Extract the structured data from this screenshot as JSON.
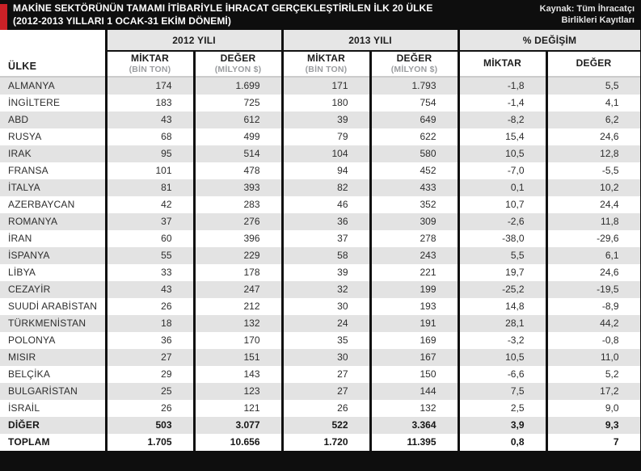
{
  "header": {
    "title_line1": "MAKİNE SEKTÖRÜNÜN TAMAMI İTİBARİYLE İHRACAT GERÇEKLEŞTİRİLEN İLK 20 ÜLKE",
    "title_line2": "(2012-2013 YILLARI 1 OCAK-31 EKİM DÖNEMİ)",
    "source_line1": "Kaynak: Tüm İhracatçı",
    "source_line2": "Birlikleri Kayıtları"
  },
  "table": {
    "country_header": "ÜLKE",
    "groups": [
      {
        "label": "2012 YILI",
        "sub": [
          {
            "label": "MİKTAR",
            "unit": "(BİN TON)"
          },
          {
            "label": "DEĞER",
            "unit": "(MİLYON $)"
          }
        ]
      },
      {
        "label": "2013 YILI",
        "sub": [
          {
            "label": "MİKTAR",
            "unit": "(BİN TON)"
          },
          {
            "label": "DEĞER",
            "unit": "(MİLYON $)"
          }
        ]
      },
      {
        "label": "% DEĞİŞİM",
        "sub": [
          {
            "label": "MİKTAR"
          },
          {
            "label": "DEĞER"
          }
        ]
      }
    ],
    "rows": [
      {
        "country": "ALMANYA",
        "values": [
          "174",
          "1.699",
          "171",
          "1.793",
          "-1,8",
          "5,5"
        ]
      },
      {
        "country": "İNGİLTERE",
        "values": [
          "183",
          "725",
          "180",
          "754",
          "-1,4",
          "4,1"
        ]
      },
      {
        "country": "ABD",
        "values": [
          "43",
          "612",
          "39",
          "649",
          "-8,2",
          "6,2"
        ]
      },
      {
        "country": "RUSYA",
        "values": [
          "68",
          "499",
          "79",
          "622",
          "15,4",
          "24,6"
        ]
      },
      {
        "country": "IRAK",
        "values": [
          "95",
          "514",
          "104",
          "580",
          "10,5",
          "12,8"
        ]
      },
      {
        "country": "FRANSA",
        "values": [
          "101",
          "478",
          "94",
          "452",
          "-7,0",
          "-5,5"
        ]
      },
      {
        "country": "İTALYA",
        "values": [
          "81",
          "393",
          "82",
          "433",
          "0,1",
          "10,2"
        ]
      },
      {
        "country": "AZERBAYCAN",
        "values": [
          "42",
          "283",
          "46",
          "352",
          "10,7",
          "24,4"
        ]
      },
      {
        "country": "ROMANYA",
        "values": [
          "37",
          "276",
          "36",
          "309",
          "-2,6",
          "11,8"
        ]
      },
      {
        "country": "İRAN",
        "values": [
          "60",
          "396",
          "37",
          "278",
          "-38,0",
          "-29,6"
        ]
      },
      {
        "country": "İSPANYA",
        "values": [
          "55",
          "229",
          "58",
          "243",
          "5,5",
          "6,1"
        ]
      },
      {
        "country": "LİBYA",
        "values": [
          "33",
          "178",
          "39",
          "221",
          "19,7",
          "24,6"
        ]
      },
      {
        "country": "CEZAYİR",
        "values": [
          "43",
          "247",
          "32",
          "199",
          "-25,2",
          "-19,5"
        ]
      },
      {
        "country": "SUUDİ ARABİSTAN",
        "values": [
          "26",
          "212",
          "30",
          "193",
          "14,8",
          "-8,9"
        ]
      },
      {
        "country": "TÜRKMENİSTAN",
        "values": [
          "18",
          "132",
          "24",
          "191",
          "28,1",
          "44,2"
        ]
      },
      {
        "country": "POLONYA",
        "values": [
          "36",
          "170",
          "35",
          "169",
          "-3,2",
          "-0,8"
        ]
      },
      {
        "country": "MISIR",
        "values": [
          "27",
          "151",
          "30",
          "167",
          "10,5",
          "11,0"
        ]
      },
      {
        "country": "BELÇİKA",
        "values": [
          "29",
          "143",
          "27",
          "150",
          "-6,6",
          "5,2"
        ]
      },
      {
        "country": "BULGARİSTAN",
        "values": [
          "25",
          "123",
          "27",
          "144",
          "7,5",
          "17,2"
        ]
      },
      {
        "country": "İSRAİL",
        "values": [
          "26",
          "121",
          "26",
          "132",
          "2,5",
          "9,0"
        ]
      },
      {
        "country": "DİĞER",
        "values": [
          "503",
          "3.077",
          "522",
          "3.364",
          "3,9",
          "9,3"
        ],
        "bold": true
      },
      {
        "country": "TOPLAM",
        "values": [
          "1.705",
          "10.656",
          "1.720",
          "11.395",
          "0,8",
          "7"
        ],
        "bold": true
      }
    ]
  },
  "colors": {
    "accent_red": "#cb2127",
    "bar_black": "#0e0e0e",
    "band_gray": "#e6e6e6",
    "row_alt_gray": "#e3e3e3",
    "unit_gray": "#9b9da0"
  }
}
